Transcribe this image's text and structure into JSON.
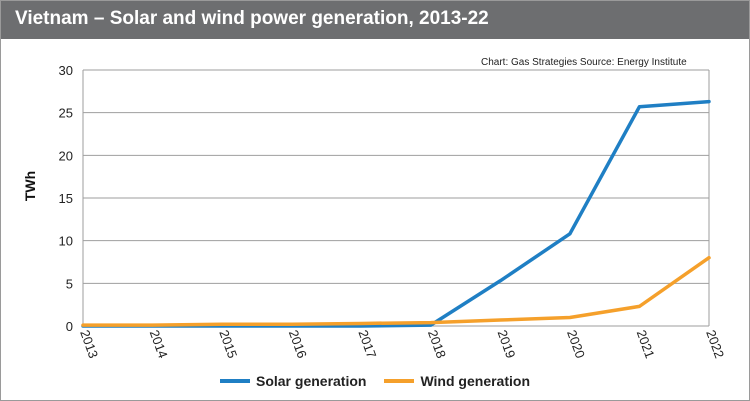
{
  "title": "Vietnam – Solar and wind power generation, 2013-22",
  "source_note": "Chart: Gas Strategies  Source: Energy Institute",
  "colors": {
    "title_bar": "#6d6e70",
    "solar": "#1f7fc4",
    "wind": "#f5a02b",
    "grid": "#9e9e9e"
  },
  "chart_data": {
    "type": "line",
    "title": "Vietnam – Solar and wind power generation, 2013-22",
    "xlabel": "",
    "ylabel": "TWh",
    "ylim": [
      0,
      30
    ],
    "yticks": [
      0,
      5,
      10,
      15,
      20,
      25,
      30
    ],
    "grid": true,
    "legend_position": "bottom",
    "categories": [
      "2013",
      "2014",
      "2015",
      "2016",
      "2017",
      "2018",
      "2019",
      "2020",
      "2021",
      "2022"
    ],
    "series": [
      {
        "name": "Solar generation",
        "color": "#1f7fc4",
        "values": [
          0,
          0,
          0,
          0,
          0,
          0.1,
          5.3,
          10.8,
          25.7,
          26.3
        ]
      },
      {
        "name": "Wind generation",
        "color": "#f5a02b",
        "values": [
          0.1,
          0.1,
          0.2,
          0.2,
          0.3,
          0.4,
          0.7,
          1.0,
          2.3,
          8.0
        ]
      }
    ]
  }
}
